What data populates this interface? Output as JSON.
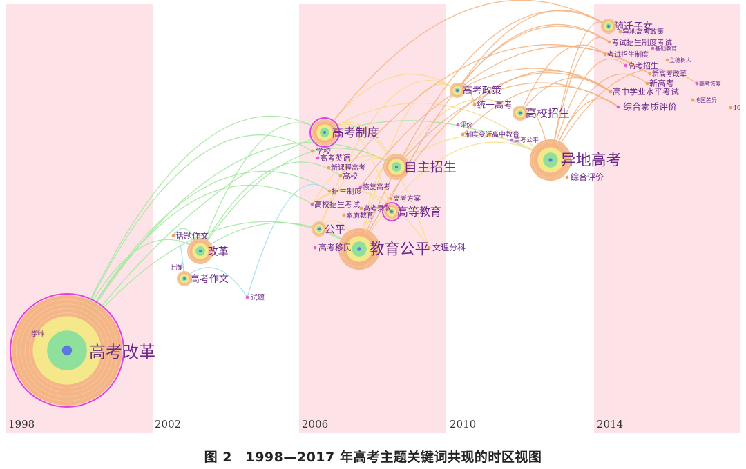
{
  "caption": "图 2　1998—2017 年高考主题关键词共现的时区视图",
  "colors": {
    "band": "#fde2e8",
    "label": "#6a2a8a",
    "ring_outer": "#f5b07c",
    "ring_mid": "#f4e88a",
    "ring_inner": "#8fe09a",
    "ring_core": "#5a78e0",
    "halo": "#e040e0"
  },
  "time_zones": [
    {
      "label": "1998",
      "shaded": true
    },
    {
      "label": "2002",
      "shaded": false
    },
    {
      "label": "2006",
      "shaded": true
    },
    {
      "label": "2010",
      "shaded": false
    },
    {
      "label": "2014",
      "shaded": true
    }
  ],
  "keywords": [
    {
      "id": "k1",
      "label": "高考改革",
      "size": "xl",
      "halo": true
    },
    {
      "id": "k2",
      "label": "学科"
    },
    {
      "id": "k3",
      "label": "话题作文"
    },
    {
      "id": "k4",
      "label": "改革",
      "size": "m"
    },
    {
      "id": "k5",
      "label": "上海"
    },
    {
      "id": "k6",
      "label": "高考作文",
      "size": "s"
    },
    {
      "id": "k7",
      "label": "试题"
    },
    {
      "id": "k8",
      "label": "高考制度",
      "size": "m",
      "halo": true
    },
    {
      "id": "k9",
      "label": "学校"
    },
    {
      "id": "k10",
      "label": "高考英语"
    },
    {
      "id": "k11",
      "label": "新课程高考"
    },
    {
      "id": "k12",
      "label": "高校"
    },
    {
      "id": "k13",
      "label": "恢复高考"
    },
    {
      "id": "k14",
      "label": "招生制度"
    },
    {
      "id": "k15",
      "label": "高考方案"
    },
    {
      "id": "k16",
      "label": "高校招生考试"
    },
    {
      "id": "k17",
      "label": "高考录取"
    },
    {
      "id": "k18",
      "label": "素质教育"
    },
    {
      "id": "k19",
      "label": "自主招生",
      "size": "m"
    },
    {
      "id": "k20",
      "label": "高等教育",
      "size": "s",
      "halo": true
    },
    {
      "id": "k21",
      "label": "公平",
      "size": "s"
    },
    {
      "id": "k22",
      "label": "高考移民"
    },
    {
      "id": "k23",
      "label": "教育公平",
      "size": "l"
    },
    {
      "id": "k24",
      "label": "文理分科"
    },
    {
      "id": "k25",
      "label": "高考政策",
      "size": "s"
    },
    {
      "id": "k26",
      "label": "统一高考"
    },
    {
      "id": "k27",
      "label": "高校招生",
      "size": "s"
    },
    {
      "id": "k28",
      "label": "评价"
    },
    {
      "id": "k29",
      "label": "制度变迁"
    },
    {
      "id": "k30",
      "label": "高中教育"
    },
    {
      "id": "k31",
      "label": "高考公平"
    },
    {
      "id": "k32",
      "label": "异地高考",
      "size": "l"
    },
    {
      "id": "k33",
      "label": "综合评价"
    },
    {
      "id": "k34",
      "label": "随迁子女",
      "size": "s"
    },
    {
      "id": "k35",
      "label": "异地高考政策"
    },
    {
      "id": "k36",
      "label": "考试招生制度考试"
    },
    {
      "id": "k37",
      "label": "基础教育"
    },
    {
      "id": "k38",
      "label": "考试招生制度"
    },
    {
      "id": "k39",
      "label": "立德树人"
    },
    {
      "id": "k40",
      "label": "高考招生"
    },
    {
      "id": "k41",
      "label": "新高考改革"
    },
    {
      "id": "k42",
      "label": "新高考"
    },
    {
      "id": "k43",
      "label": "高考恢复"
    },
    {
      "id": "k44",
      "label": "高中学业水平考试"
    },
    {
      "id": "k45",
      "label": "地区差异"
    },
    {
      "id": "k46",
      "label": "综合素质评价"
    },
    {
      "id": "k47",
      "label": "40"
    }
  ],
  "links": [
    [
      "k1",
      "k8"
    ],
    [
      "k1",
      "k4"
    ],
    [
      "k1",
      "k19"
    ],
    [
      "k1",
      "k23"
    ],
    [
      "k1",
      "k14"
    ],
    [
      "k1",
      "k16"
    ],
    [
      "k1",
      "k9"
    ],
    [
      "k1",
      "k32"
    ],
    [
      "k4",
      "k8"
    ],
    [
      "k4",
      "k19"
    ],
    [
      "k4",
      "k23"
    ],
    [
      "k4",
      "k12"
    ],
    [
      "k4",
      "k3"
    ],
    [
      "k6",
      "k7"
    ],
    [
      "k6",
      "k5"
    ],
    [
      "k6",
      "k3"
    ],
    [
      "k7",
      "k14"
    ],
    [
      "k8",
      "k19"
    ],
    [
      "k8",
      "k20"
    ],
    [
      "k8",
      "k25"
    ],
    [
      "k8",
      "k32"
    ],
    [
      "k8",
      "k34"
    ],
    [
      "k8",
      "k24"
    ],
    [
      "k19",
      "k32"
    ],
    [
      "k19",
      "k27"
    ],
    [
      "k19",
      "k46"
    ],
    [
      "k23",
      "k32"
    ],
    [
      "k23",
      "k25"
    ],
    [
      "k23",
      "k34"
    ],
    [
      "k23",
      "k44"
    ],
    [
      "k23",
      "k19"
    ],
    [
      "k23",
      "k20"
    ],
    [
      "k16",
      "k19"
    ],
    [
      "k16",
      "k20"
    ],
    [
      "k16",
      "k24"
    ],
    [
      "k21",
      "k23"
    ],
    [
      "k21",
      "k19"
    ],
    [
      "k21",
      "k25"
    ],
    [
      "k25",
      "k34"
    ],
    [
      "k25",
      "k41"
    ],
    [
      "k25",
      "k36"
    ],
    [
      "k25",
      "k26"
    ],
    [
      "k27",
      "k38"
    ],
    [
      "k27",
      "k44"
    ],
    [
      "k27",
      "k32"
    ],
    [
      "k32",
      "k34"
    ],
    [
      "k32",
      "k36"
    ],
    [
      "k32",
      "k46"
    ],
    [
      "k32",
      "k42"
    ],
    [
      "k32",
      "k40"
    ],
    [
      "k32",
      "k43"
    ],
    [
      "k29",
      "k46"
    ],
    [
      "k26",
      "k44"
    ],
    [
      "k12",
      "k41"
    ],
    [
      "k13",
      "k44"
    ],
    [
      "k15",
      "k36"
    ]
  ]
}
